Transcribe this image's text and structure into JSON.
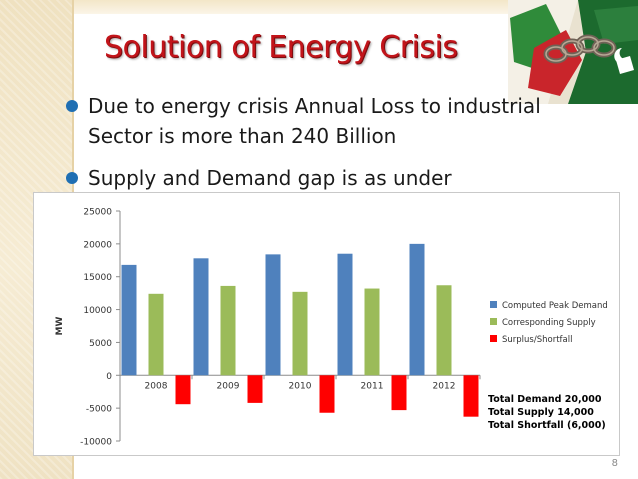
{
  "slide": {
    "title": "Solution of Energy Crisis",
    "bullets": [
      {
        "text": "Due to energy crisis Annual Loss to industrial"
      },
      {
        "text": "Sector is more than 240 Billion"
      },
      {
        "text": "Supply and Demand gap is as under"
      }
    ],
    "page_number": "8"
  },
  "colors": {
    "title": "#c2141a",
    "bullet": "#1f6fb3",
    "demand": "#4f81bd",
    "supply": "#9bbb59",
    "shortfall": "#ff0000"
  },
  "summary": [
    "Total Demand  20,000",
    "Total Supply   14,000",
    "Total Shortfall (6,000)"
  ],
  "chart_data": {
    "type": "bar",
    "categories": [
      "2008",
      "2009",
      "2010",
      "2011",
      "2012"
    ],
    "series": [
      {
        "name": "Computed Peak Demand",
        "color": "#4f81bd",
        "values": [
          16800,
          17800,
          18400,
          18500,
          20000
        ]
      },
      {
        "name": "Corresponding Supply",
        "color": "#9bbb59",
        "values": [
          12400,
          13600,
          12700,
          13200,
          13700
        ]
      },
      {
        "name": "Surplus/Shortfall",
        "color": "#ff0000",
        "values": [
          -4400,
          -4200,
          -5700,
          -5300,
          -6300
        ]
      }
    ],
    "ylabel": "MW",
    "xlabel": "",
    "ylim": [
      -10000,
      25000
    ],
    "yticks": [
      25000,
      20000,
      15000,
      10000,
      5000,
      0,
      -5000,
      -10000
    ],
    "grid": false,
    "legend": "right"
  }
}
